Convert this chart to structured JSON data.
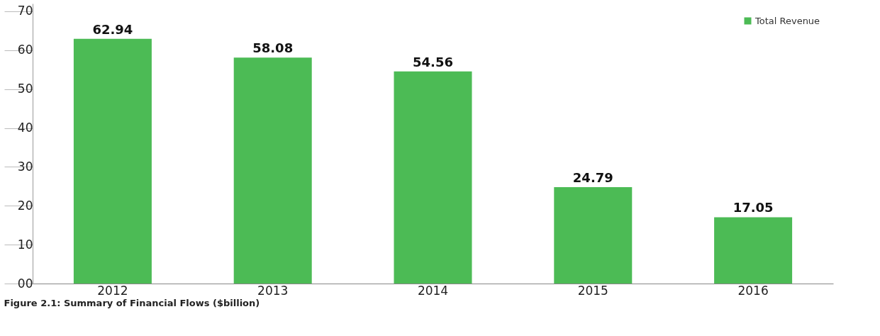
{
  "chart_data": {
    "type": "bar",
    "categories": [
      "2012",
      "2013",
      "2014",
      "2015",
      "2016"
    ],
    "series": [
      {
        "name": "Total Revenue",
        "color": "#4cbb55",
        "values": [
          62.94,
          58.08,
          54.56,
          24.79,
          17.05
        ]
      }
    ],
    "ylim": [
      0,
      72
    ],
    "yticks": [
      {
        "value": 0,
        "label": "00"
      },
      10,
      20,
      30,
      40,
      50,
      60,
      70
    ],
    "data_labels": true,
    "legend": "top right",
    "grid": false,
    "annotations": [
      "Figure 2.1: Summary of Financial Flows ($billion)"
    ]
  }
}
